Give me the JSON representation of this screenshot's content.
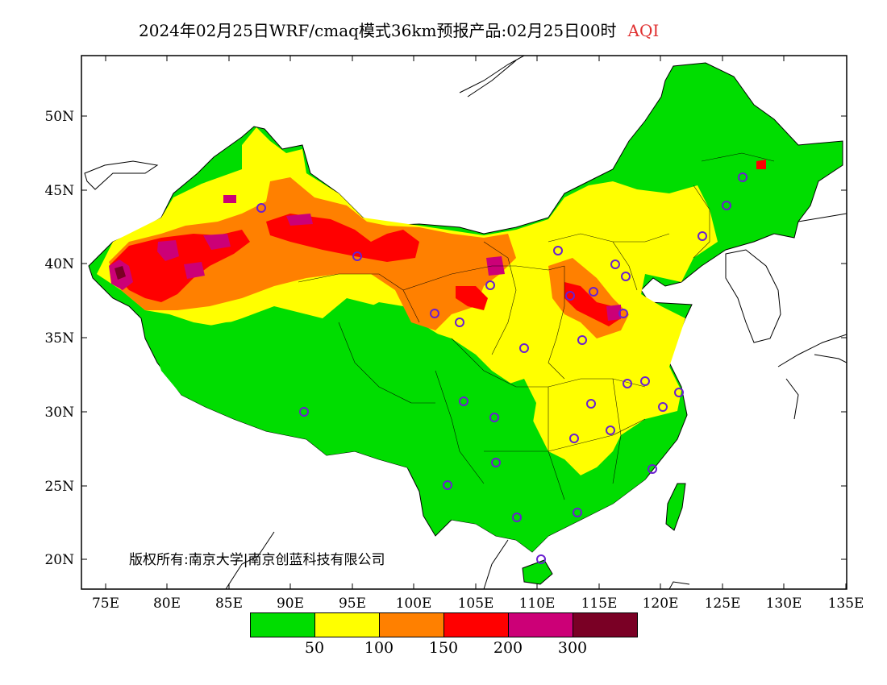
{
  "title": {
    "text": "2024年02月25日WRF/cmaq模式36km预报产品:02月25日00时",
    "variable": "AQI",
    "variable_color": "#ff0000"
  },
  "axes": {
    "lat_labels": [
      "50N",
      "45N",
      "40N",
      "35N",
      "30N",
      "25N",
      "20N"
    ],
    "lon_labels": [
      "75E",
      "80E",
      "85E",
      "90E",
      "95E",
      "100E",
      "105E",
      "110E",
      "115E",
      "120E",
      "125E",
      "130E",
      "135E"
    ]
  },
  "legend": {
    "colors": [
      "#00dd00",
      "#ffff00",
      "#ff8000",
      "#ff0000",
      "#cc0077",
      "#7a0025"
    ],
    "labels": [
      "50",
      "100",
      "150",
      "200",
      "300"
    ]
  },
  "copyright": "版权所有:南京大学|南京创蓝科技有限公司",
  "stations": "site-circles"
}
